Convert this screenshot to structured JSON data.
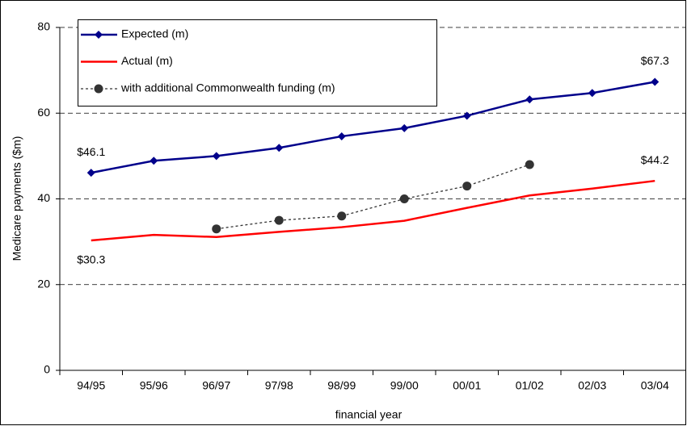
{
  "chart_data": {
    "type": "line",
    "x_label": "financial year",
    "y_label": "Medicare payments ($m)",
    "categories": [
      "94/95",
      "95/96",
      "96/97",
      "97/98",
      "98/99",
      "99/00",
      "00/01",
      "01/02",
      "02/03",
      "03/04"
    ],
    "series": [
      {
        "name": "Expected (m)",
        "color": "#00008b",
        "marker": "diamond",
        "dashed": false,
        "values": [
          46.1,
          48.9,
          50.0,
          51.9,
          54.6,
          56.5,
          59.4,
          63.2,
          64.7,
          67.3
        ],
        "value_labels": [
          "$46.1",
          null,
          null,
          null,
          null,
          null,
          null,
          null,
          null,
          "$67.3"
        ]
      },
      {
        "name": "Actual (m)",
        "color": "#ff0000",
        "marker": "none",
        "dashed": false,
        "values": [
          30.3,
          31.6,
          31.1,
          32.3,
          33.4,
          34.9,
          37.9,
          40.8,
          42.4,
          44.2
        ],
        "value_labels": [
          "$30.3",
          null,
          null,
          null,
          null,
          null,
          null,
          null,
          null,
          "$44.2"
        ]
      },
      {
        "name": "with additional Commonwealth funding (m)",
        "color": "#333333",
        "marker": "circle",
        "dashed": true,
        "values": [
          null,
          null,
          33,
          35,
          36,
          40,
          43,
          48,
          null,
          null
        ]
      }
    ],
    "ylim": [
      0,
      80
    ],
    "yticks": [
      0,
      20,
      40,
      60,
      80
    ],
    "grid": true,
    "legend": "top-left"
  }
}
